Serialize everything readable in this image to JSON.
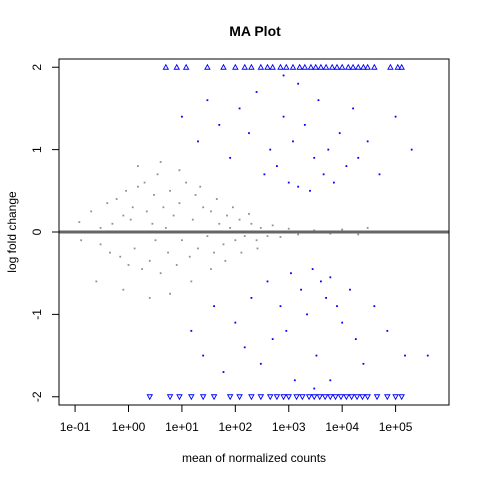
{
  "chart_data": {
    "type": "scatter",
    "title": "MA Plot",
    "xlabel": "mean of normalized counts",
    "ylabel": "log fold change",
    "x_scale": "log10",
    "xlim": [
      0.05,
      1000000
    ],
    "ylim": [
      -2.1,
      2.1
    ],
    "x_ticks": [
      {
        "value": 0.1,
        "label": "1e-01"
      },
      {
        "value": 1,
        "label": "1e+00"
      },
      {
        "value": 10,
        "label": "1e+01"
      },
      {
        "value": 100,
        "label": "1e+02"
      },
      {
        "value": 1000,
        "label": "1e+03"
      },
      {
        "value": 10000,
        "label": "1e+04"
      },
      {
        "value": 100000,
        "label": "1e+05"
      }
    ],
    "y_ticks": [
      {
        "value": -2,
        "label": "-2"
      },
      {
        "value": -1,
        "label": "-1"
      },
      {
        "value": 0,
        "label": "0"
      },
      {
        "value": 1,
        "label": "1"
      },
      {
        "value": 2,
        "label": "2"
      }
    ],
    "reference_line": {
      "y": 0,
      "color": "#666666"
    },
    "grid": false,
    "legend": "none",
    "colors": {
      "significant": "#0000ff",
      "non_significant": "#909090",
      "background": "#ffffff",
      "axis": "#000000"
    },
    "series": [
      {
        "key": "non_significant",
        "color": "#909090",
        "marker": "dot",
        "points": [
          [
            0.12,
            0.12
          ],
          [
            0.13,
            -0.1
          ],
          [
            0.2,
            0.25
          ],
          [
            0.3,
            -0.15
          ],
          [
            0.3,
            0.05
          ],
          [
            0.4,
            0.35
          ],
          [
            0.45,
            -0.25
          ],
          [
            0.5,
            0.1
          ],
          [
            0.6,
            0.4
          ],
          [
            0.7,
            -0.3
          ],
          [
            0.8,
            0.2
          ],
          [
            0.9,
            0.5
          ],
          [
            1.0,
            -0.4
          ],
          [
            1.1,
            0.15
          ],
          [
            1.2,
            0.3
          ],
          [
            1.3,
            -0.2
          ],
          [
            1.5,
            0.55
          ],
          [
            1.6,
            0.0
          ],
          [
            1.8,
            -0.45
          ],
          [
            2.0,
            0.6
          ],
          [
            2.2,
            0.25
          ],
          [
            2.5,
            -0.35
          ],
          [
            2.8,
            0.1
          ],
          [
            3.0,
            0.45
          ],
          [
            3.2,
            -0.1
          ],
          [
            3.5,
            0.7
          ],
          [
            4.0,
            -0.5
          ],
          [
            4.5,
            0.3
          ],
          [
            5.0,
            0.05
          ],
          [
            5.5,
            -0.25
          ],
          [
            6.0,
            0.5
          ],
          [
            7.0,
            0.2
          ],
          [
            8.0,
            -0.4
          ],
          [
            9.0,
            0.35
          ],
          [
            10,
            -0.1
          ],
          [
            12,
            0.6
          ],
          [
            14,
            -0.3
          ],
          [
            16,
            0.15
          ],
          [
            18,
            0.45
          ],
          [
            20,
            -0.2
          ],
          [
            25,
            0.3
          ],
          [
            30,
            -0.05
          ],
          [
            35,
            0.25
          ],
          [
            40,
            -0.25
          ],
          [
            50,
            0.1
          ],
          [
            60,
            -0.15
          ],
          [
            70,
            0.2
          ],
          [
            80,
            0.05
          ],
          [
            100,
            -0.1
          ],
          [
            120,
            0.15
          ],
          [
            150,
            -0.05
          ],
          [
            200,
            0.1
          ],
          [
            250,
            -0.1
          ],
          [
            300,
            0.05
          ],
          [
            400,
            -0.05
          ],
          [
            500,
            0.08
          ],
          [
            700,
            -0.06
          ],
          [
            1000,
            0.04
          ],
          [
            1500,
            -0.03
          ],
          [
            3000,
            0.02
          ],
          [
            6000,
            -0.02
          ],
          [
            10000,
            0.03
          ],
          [
            20000,
            -0.03
          ],
          [
            30000,
            0.05
          ],
          [
            0.25,
            -0.6
          ],
          [
            0.8,
            -0.7
          ],
          [
            1.5,
            0.8
          ],
          [
            2.5,
            -0.8
          ],
          [
            4.0,
            0.85
          ],
          [
            6.0,
            -0.75
          ],
          [
            9.0,
            0.75
          ],
          [
            15,
            -0.6
          ],
          [
            22,
            0.55
          ],
          [
            35,
            -0.45
          ],
          [
            45,
            0.4
          ],
          [
            65,
            -0.35
          ],
          [
            90,
            0.3
          ],
          [
            130,
            -0.25
          ],
          [
            180,
            0.22
          ],
          [
            260,
            -0.2
          ]
        ]
      },
      {
        "key": "significant",
        "color": "#0000ff",
        "marker": "dot",
        "points": [
          [
            10,
            1.4
          ],
          [
            15,
            -1.2
          ],
          [
            20,
            1.1
          ],
          [
            25,
            -1.5
          ],
          [
            30,
            1.6
          ],
          [
            40,
            -0.9
          ],
          [
            50,
            1.3
          ],
          [
            60,
            -1.7
          ],
          [
            80,
            0.9
          ],
          [
            100,
            -1.1
          ],
          [
            120,
            1.5
          ],
          [
            150,
            -1.4
          ],
          [
            180,
            1.2
          ],
          [
            200,
            -0.8
          ],
          [
            250,
            1.7
          ],
          [
            300,
            -1.6
          ],
          [
            350,
            0.7
          ],
          [
            400,
            -0.6
          ],
          [
            450,
            1.0
          ],
          [
            500,
            -1.3
          ],
          [
            600,
            0.8
          ],
          [
            700,
            -0.9
          ],
          [
            800,
            1.4
          ],
          [
            900,
            -1.2
          ],
          [
            1000,
            0.6
          ],
          [
            1100,
            -0.5
          ],
          [
            1200,
            1.1
          ],
          [
            1300,
            -1.8
          ],
          [
            1500,
            0.55
          ],
          [
            1700,
            -0.7
          ],
          [
            2000,
            1.3
          ],
          [
            2200,
            -1.0
          ],
          [
            2500,
            0.5
          ],
          [
            2800,
            -0.45
          ],
          [
            3000,
            0.9
          ],
          [
            3300,
            -1.5
          ],
          [
            3600,
            1.6
          ],
          [
            4000,
            -0.6
          ],
          [
            4500,
            0.7
          ],
          [
            5000,
            -0.8
          ],
          [
            5500,
            1.0
          ],
          [
            6000,
            -0.55
          ],
          [
            7000,
            0.6
          ],
          [
            8000,
            -0.9
          ],
          [
            9000,
            1.2
          ],
          [
            10000,
            -1.1
          ],
          [
            12000,
            0.8
          ],
          [
            14000,
            -0.7
          ],
          [
            16000,
            1.5
          ],
          [
            18000,
            -1.3
          ],
          [
            20000,
            0.9
          ],
          [
            25000,
            -1.6
          ],
          [
            30000,
            1.1
          ],
          [
            40000,
            -0.9
          ],
          [
            50000,
            0.7
          ],
          [
            70000,
            -1.2
          ],
          [
            100000,
            1.4
          ],
          [
            150000,
            -1.5
          ],
          [
            200000,
            1.0
          ],
          [
            400000,
            -1.5
          ],
          [
            1500,
            1.8
          ],
          [
            3000,
            -1.9
          ],
          [
            800,
            1.9
          ],
          [
            6000,
            -1.8
          ]
        ]
      },
      {
        "key": "significant_clipped_high",
        "color": "#0000ff",
        "marker": "triangle-up",
        "points": [
          [
            5,
            2
          ],
          [
            8,
            2
          ],
          [
            12,
            2
          ],
          [
            30,
            2
          ],
          [
            60,
            2
          ],
          [
            100,
            2
          ],
          [
            150,
            2
          ],
          [
            200,
            2
          ],
          [
            300,
            2
          ],
          [
            400,
            2
          ],
          [
            500,
            2
          ],
          [
            700,
            2
          ],
          [
            900,
            2
          ],
          [
            1200,
            2
          ],
          [
            1600,
            2
          ],
          [
            2000,
            2
          ],
          [
            2600,
            2
          ],
          [
            3200,
            2
          ],
          [
            4000,
            2
          ],
          [
            5000,
            2
          ],
          [
            6500,
            2
          ],
          [
            8000,
            2
          ],
          [
            10000,
            2
          ],
          [
            13000,
            2
          ],
          [
            16000,
            2
          ],
          [
            20000,
            2
          ],
          [
            25000,
            2
          ],
          [
            30000,
            2
          ],
          [
            40000,
            2
          ],
          [
            80000,
            2
          ],
          [
            110000,
            2
          ],
          [
            130000,
            2
          ]
        ]
      },
      {
        "key": "significant_clipped_low",
        "color": "#0000ff",
        "marker": "triangle-down",
        "points": [
          [
            2.5,
            -2
          ],
          [
            6,
            -2
          ],
          [
            9,
            -2
          ],
          [
            15,
            -2
          ],
          [
            25,
            -2
          ],
          [
            40,
            -2
          ],
          [
            80,
            -2
          ],
          [
            120,
            -2
          ],
          [
            200,
            -2
          ],
          [
            300,
            -2
          ],
          [
            450,
            -2
          ],
          [
            600,
            -2
          ],
          [
            800,
            -2
          ],
          [
            1000,
            -2
          ],
          [
            1400,
            -2
          ],
          [
            1800,
            -2
          ],
          [
            2400,
            -2
          ],
          [
            3000,
            -2
          ],
          [
            3800,
            -2
          ],
          [
            4800,
            -2
          ],
          [
            6000,
            -2
          ],
          [
            7500,
            -2
          ],
          [
            9500,
            -2
          ],
          [
            12000,
            -2
          ],
          [
            15000,
            -2
          ],
          [
            19000,
            -2
          ],
          [
            24000,
            -2
          ],
          [
            30000,
            -2
          ],
          [
            45000,
            -2
          ],
          [
            70000,
            -2
          ],
          [
            100000,
            -2
          ],
          [
            130000,
            -2
          ]
        ]
      }
    ]
  }
}
